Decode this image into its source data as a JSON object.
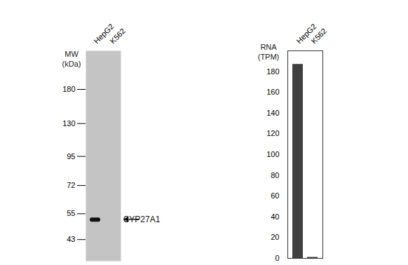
{
  "chart_data": [
    {
      "type": "blot",
      "categories": [
        "HepG2",
        "K562"
      ],
      "ylabel": "MW\n(kDa)",
      "log": "y",
      "ylim": [
        35,
        260
      ],
      "yticks": [
        43,
        55,
        72,
        95,
        130,
        180
      ],
      "bands": [
        {
          "lane": "HepG2",
          "mw": 52
        }
      ],
      "annotations": [
        {
          "text": "CYP27A1",
          "y": 52
        }
      ],
      "color": "#c4c4c4"
    },
    {
      "type": "bar",
      "categories": [
        "HepG2",
        "K562"
      ],
      "values": [
        187,
        1
      ],
      "ylabel": "RNA\n(TPM)",
      "ylim": [
        0,
        200
      ],
      "yticks": [
        0,
        20,
        40,
        60,
        80,
        100,
        120,
        140,
        160,
        180
      ],
      "color": "#404040"
    }
  ]
}
